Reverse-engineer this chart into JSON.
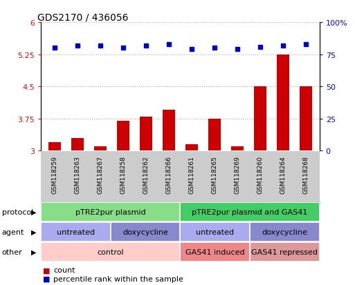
{
  "title": "GDS2170 / 436056",
  "samples": [
    "GSM118259",
    "GSM118263",
    "GSM118267",
    "GSM118258",
    "GSM118262",
    "GSM118266",
    "GSM118261",
    "GSM118265",
    "GSM118269",
    "GSM118260",
    "GSM118264",
    "GSM118268"
  ],
  "bar_values": [
    3.2,
    3.3,
    3.1,
    3.7,
    3.8,
    3.95,
    3.15,
    3.75,
    3.1,
    4.5,
    5.25,
    4.5
  ],
  "dot_values": [
    80,
    82,
    82,
    80,
    82,
    83,
    79,
    80,
    79,
    81,
    82,
    83
  ],
  "ylim_left": [
    3,
    6
  ],
  "ylim_right": [
    0,
    100
  ],
  "yticks_left": [
    3,
    3.75,
    4.5,
    5.25,
    6
  ],
  "yticks_right": [
    0,
    25,
    50,
    75,
    100
  ],
  "ytick_labels_left": [
    "3",
    "3.75",
    "4.5",
    "5.25",
    "6"
  ],
  "ytick_labels_right": [
    "0",
    "25",
    "50",
    "75",
    "100%"
  ],
  "bar_color": "#cc0000",
  "dot_color": "#0000cc",
  "grid_color": "#aaaaaa",
  "protocol_row": [
    {
      "label": "pTRE2pur plasmid",
      "start": 0,
      "end": 6,
      "color": "#88dd88"
    },
    {
      "label": "pTRE2pur plasmid and GAS41",
      "start": 6,
      "end": 12,
      "color": "#44cc66"
    }
  ],
  "agent_row": [
    {
      "label": "untreated",
      "start": 0,
      "end": 3,
      "color": "#aaaaee"
    },
    {
      "label": "doxycycline",
      "start": 3,
      "end": 6,
      "color": "#8888cc"
    },
    {
      "label": "untreated",
      "start": 6,
      "end": 9,
      "color": "#aaaaee"
    },
    {
      "label": "doxycycline",
      "start": 9,
      "end": 12,
      "color": "#8888cc"
    }
  ],
  "other_row": [
    {
      "label": "control",
      "start": 0,
      "end": 6,
      "color": "#ffcccc"
    },
    {
      "label": "GAS41 induced",
      "start": 6,
      "end": 9,
      "color": "#ee8888"
    },
    {
      "label": "GAS41 repressed",
      "start": 9,
      "end": 12,
      "color": "#dd9999"
    }
  ],
  "label_fontsize": 8,
  "title_fontsize": 10,
  "tick_fontsize": 8,
  "sample_fontsize": 6.5,
  "row_label_fontsize": 8,
  "bg_color": "#ffffff",
  "sample_bg_color": "#cccccc"
}
